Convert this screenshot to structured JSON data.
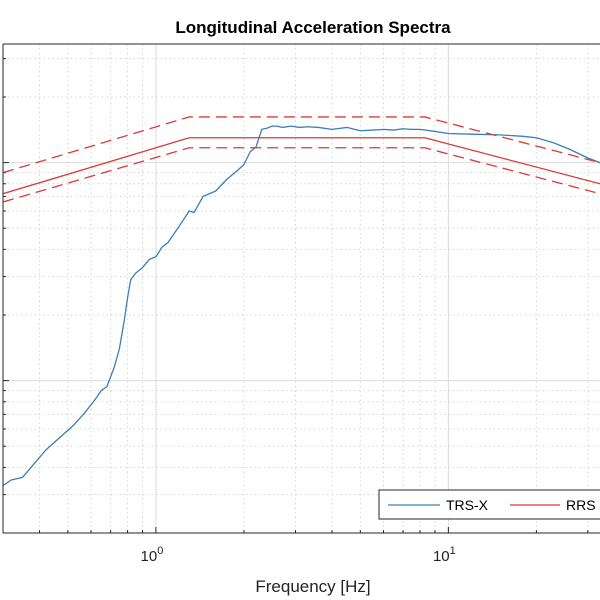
{
  "chart_data": {
    "type": "line",
    "title": "Longitudinal Acceleration Spectra",
    "xlabel": "Frequency [Hz]",
    "ylabel": "",
    "x_scale": "log",
    "y_scale": "log",
    "xlim": [
      0.3,
      33
    ],
    "ylim": [
      0.02,
      3.5
    ],
    "grid": true,
    "legend_position": "bottom-right",
    "x_ticks": [
      {
        "value": 1,
        "label": "10",
        "exp": "0"
      },
      {
        "value": 10,
        "label": "10",
        "exp": "1"
      }
    ],
    "series": [
      {
        "name": "TRS-X",
        "color": "#3a7fb8",
        "style": "solid",
        "points": [
          [
            0.3,
            0.033
          ],
          [
            0.32,
            0.035
          ],
          [
            0.35,
            0.036
          ],
          [
            0.38,
            0.041
          ],
          [
            0.42,
            0.048
          ],
          [
            0.47,
            0.055
          ],
          [
            0.52,
            0.062
          ],
          [
            0.57,
            0.071
          ],
          [
            0.62,
            0.082
          ],
          [
            0.65,
            0.09
          ],
          [
            0.68,
            0.094
          ],
          [
            0.72,
            0.115
          ],
          [
            0.75,
            0.14
          ],
          [
            0.78,
            0.19
          ],
          [
            0.8,
            0.24
          ],
          [
            0.82,
            0.29
          ],
          [
            0.85,
            0.31
          ],
          [
            0.9,
            0.33
          ],
          [
            0.95,
            0.36
          ],
          [
            1.0,
            0.37
          ],
          [
            1.05,
            0.41
          ],
          [
            1.1,
            0.43
          ],
          [
            1.2,
            0.51
          ],
          [
            1.3,
            0.6
          ],
          [
            1.35,
            0.59
          ],
          [
            1.45,
            0.7
          ],
          [
            1.6,
            0.74
          ],
          [
            1.75,
            0.84
          ],
          [
            1.9,
            0.92
          ],
          [
            2.0,
            0.98
          ],
          [
            2.1,
            1.12
          ],
          [
            2.2,
            1.18
          ],
          [
            2.3,
            1.42
          ],
          [
            2.4,
            1.44
          ],
          [
            2.5,
            1.47
          ],
          [
            2.6,
            1.47
          ],
          [
            2.7,
            1.45
          ],
          [
            2.9,
            1.47
          ],
          [
            3.1,
            1.45
          ],
          [
            3.3,
            1.46
          ],
          [
            3.6,
            1.45
          ],
          [
            4.0,
            1.42
          ],
          [
            4.5,
            1.45
          ],
          [
            5.0,
            1.4
          ],
          [
            5.5,
            1.41
          ],
          [
            6.0,
            1.42
          ],
          [
            6.5,
            1.41
          ],
          [
            7.0,
            1.43
          ],
          [
            7.5,
            1.42
          ],
          [
            8.0,
            1.42
          ],
          [
            9.0,
            1.39
          ],
          [
            10.0,
            1.36
          ],
          [
            12.0,
            1.35
          ],
          [
            15.0,
            1.34
          ],
          [
            18.0,
            1.32
          ],
          [
            20.0,
            1.3
          ],
          [
            23.0,
            1.23
          ],
          [
            26.0,
            1.15
          ],
          [
            30.0,
            1.05
          ],
          [
            33.0,
            1.0
          ]
        ]
      },
      {
        "name": "RRS",
        "color": "#d93a3a",
        "style": "solid",
        "points": [
          [
            0.3,
            0.72
          ],
          [
            1.3,
            1.3
          ],
          [
            8.3,
            1.3
          ],
          [
            33.0,
            0.8
          ]
        ]
      },
      {
        "name": "",
        "color": "#d93a3a",
        "style": "dashed",
        "points": [
          [
            0.3,
            0.9
          ],
          [
            1.3,
            1.62
          ],
          [
            8.3,
            1.62
          ],
          [
            33.0,
            1.0
          ]
        ]
      },
      {
        "name": "",
        "color": "#d93a3a",
        "style": "dashed",
        "points": [
          [
            0.3,
            0.66
          ],
          [
            1.3,
            1.17
          ],
          [
            8.3,
            1.17
          ],
          [
            33.0,
            0.72
          ]
        ]
      }
    ]
  }
}
